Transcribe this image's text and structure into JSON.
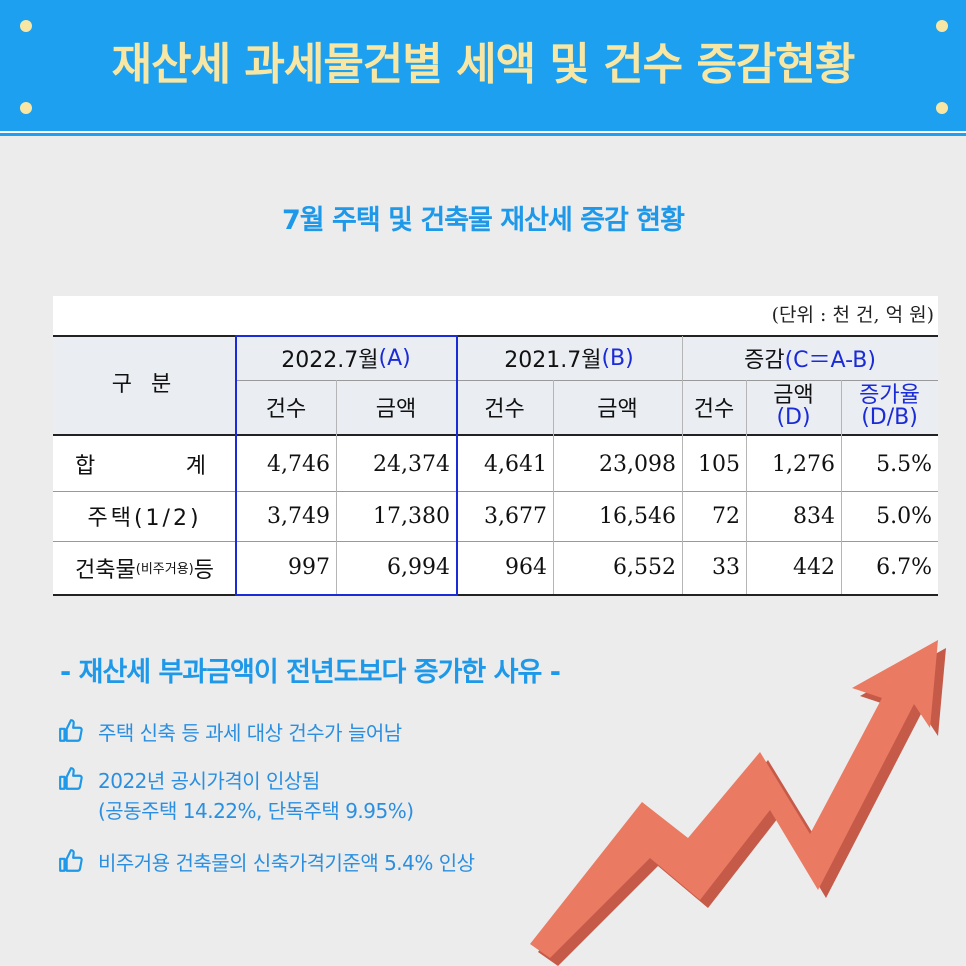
{
  "header": {
    "title": "재산세 과세물건별 세액 및 건수 증감현황"
  },
  "subtitle": "7월 주택 및 건축물 재산세 증감 현황",
  "table": {
    "unit": "(단위 : 천 건, 억 원)",
    "category_header": "구 분",
    "group_2022": {
      "prefix": "2022.7월",
      "suffix": "(A)"
    },
    "group_2021": {
      "prefix": "2021.7월",
      "suffix": "(B)"
    },
    "group_change": {
      "prefix": "증감",
      "suffix": "(C＝A-B)"
    },
    "sub": {
      "count": "건수",
      "amount": "금액",
      "amount_d_1": "금액",
      "amount_d_2": "(D)",
      "rate_1": "증가율",
      "rate_2": "(D/B)"
    },
    "rows": [
      {
        "label_a": "합",
        "label_b": "계",
        "c2022": "4,746",
        "a2022": "24,374",
        "c2021": "4,641",
        "a2021": "23,098",
        "cc": "105",
        "ac": "1,276",
        "rate": "5.5%"
      },
      {
        "label": "주택(1/2)",
        "c2022": "3,749",
        "a2022": "17,380",
        "c2021": "3,677",
        "a2021": "16,546",
        "cc": "72",
        "ac": "834",
        "rate": "5.0%"
      },
      {
        "label_main": "건축물",
        "label_small": "(비주거용)",
        "label_end": "등",
        "c2022": "997",
        "a2022": "6,994",
        "c2021": "964",
        "a2021": "6,552",
        "cc": "33",
        "ac": "442",
        "rate": "6.7%"
      }
    ]
  },
  "reasons": {
    "title": "- 재산세 부과금액이 전년도보다 증가한 사유 -",
    "items": [
      {
        "line1": "주택 신축 등 과세 대상 건수가 늘어남",
        "line2": ""
      },
      {
        "line1": "2022년 공시가격이 인상됨",
        "line2": "(공동주택 14.22%, 단독주택 9.95%)"
      },
      {
        "line1": "비주거용 건축물의 신축가격기준액 5.4% 인상",
        "line2": ""
      }
    ],
    "icon": "thumbs-up-icon"
  },
  "colors": {
    "header_bg": "#1ea0f0",
    "title_yellow": "#f8e7a4",
    "accent_blue": "#1e98e8",
    "table_blue": "#1a2bd8",
    "arrow": "#e87560"
  }
}
